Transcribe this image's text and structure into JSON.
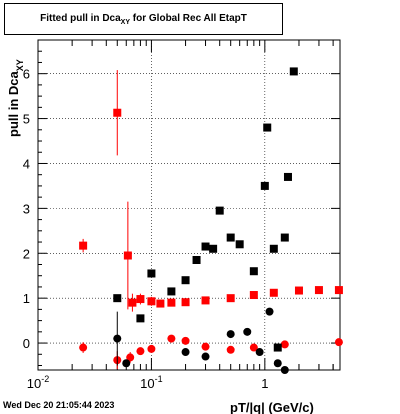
{
  "title": {
    "main": "Fitted pull in Dca",
    "sub": "XY",
    "tail": "for Global Rec All EtapT"
  },
  "ylabel": {
    "main": "pull in Dca",
    "sub": "XY"
  },
  "xlabel": "pT/|q| (GeV/c)",
  "footer": "Wed Dec 20 21:05:44 2023",
  "chart_data": {
    "type": "scatter",
    "title": "Fitted pull in Dca_XY for Global Rec All EtapT",
    "xlabel": "pT/|q| (GeV/c)",
    "ylabel": "pull in Dca_XY",
    "xscale": "log",
    "xlim": [
      0.01,
      4.6
    ],
    "ylim": [
      -0.6,
      6.75
    ],
    "grid": true,
    "x_tick_labels": [
      "10^-2",
      "10^-1",
      "1"
    ],
    "y_tick_labels": [
      "0",
      "1",
      "2",
      "3",
      "4",
      "5",
      "6"
    ],
    "series": [
      {
        "color": "#ff0000",
        "marker": "square",
        "points": [
          {
            "x": 0.025,
            "y": 2.17,
            "yerr": 0.15
          },
          {
            "x": 0.05,
            "y": 5.13,
            "yerr": 0.95
          },
          {
            "x": 0.062,
            "y": 1.95,
            "yerr": 1.2
          },
          {
            "x": 0.068,
            "y": 0.9,
            "yerr": 0.2
          },
          {
            "x": 0.08,
            "y": 0.98,
            "yerr": 0.12
          },
          {
            "x": 0.1,
            "y": 0.93,
            "yerr": 0.1
          },
          {
            "x": 0.12,
            "y": 0.88
          },
          {
            "x": 0.15,
            "y": 0.9
          },
          {
            "x": 0.2,
            "y": 0.91
          },
          {
            "x": 0.3,
            "y": 0.95
          },
          {
            "x": 0.5,
            "y": 1.0
          },
          {
            "x": 0.8,
            "y": 1.07
          },
          {
            "x": 1.2,
            "y": 1.12
          },
          {
            "x": 2.0,
            "y": 1.17
          },
          {
            "x": 3.0,
            "y": 1.18
          },
          {
            "x": 4.5,
            "y": 1.18
          }
        ]
      },
      {
        "color": "#ff0000",
        "marker": "circle",
        "points": [
          {
            "x": 0.025,
            "y": -0.1,
            "yerr": 0.12
          },
          {
            "x": 0.05,
            "y": -0.38,
            "yerr": 0.2
          },
          {
            "x": 0.065,
            "y": -0.32,
            "yerr": 0.12
          },
          {
            "x": 0.08,
            "y": -0.18
          },
          {
            "x": 0.1,
            "y": -0.13
          },
          {
            "x": 0.15,
            "y": 0.1
          },
          {
            "x": 0.2,
            "y": 0.05
          },
          {
            "x": 0.3,
            "y": -0.08
          },
          {
            "x": 0.5,
            "y": -0.15
          },
          {
            "x": 0.8,
            "y": -0.1
          },
          {
            "x": 1.5,
            "y": -0.03
          },
          {
            "x": 4.5,
            "y": 0.02
          }
        ]
      },
      {
        "color": "#000000",
        "marker": "square",
        "points": [
          {
            "x": 0.05,
            "y": 1.0
          },
          {
            "x": 0.08,
            "y": 0.55
          },
          {
            "x": 0.1,
            "y": 1.55
          },
          {
            "x": 0.15,
            "y": 1.15
          },
          {
            "x": 0.2,
            "y": 1.4
          },
          {
            "x": 0.25,
            "y": 1.85
          },
          {
            "x": 0.3,
            "y": 2.15
          },
          {
            "x": 0.35,
            "y": 2.1
          },
          {
            "x": 0.4,
            "y": 2.95
          },
          {
            "x": 0.5,
            "y": 2.35
          },
          {
            "x": 0.6,
            "y": 2.2
          },
          {
            "x": 0.8,
            "y": 1.6
          },
          {
            "x": 1.0,
            "y": 3.5
          },
          {
            "x": 1.05,
            "y": 4.8
          },
          {
            "x": 1.2,
            "y": 2.1
          },
          {
            "x": 1.5,
            "y": 2.35
          },
          {
            "x": 1.6,
            "y": 3.7
          },
          {
            "x": 1.8,
            "y": 6.05
          },
          {
            "x": 1.3,
            "y": -0.1
          }
        ]
      },
      {
        "color": "#000000",
        "marker": "circle",
        "points": [
          {
            "x": 0.05,
            "y": 0.1,
            "yerr": 0.6
          },
          {
            "x": 0.06,
            "y": -0.45
          },
          {
            "x": 0.2,
            "y": -0.2
          },
          {
            "x": 0.3,
            "y": -0.3
          },
          {
            "x": 0.5,
            "y": 0.2
          },
          {
            "x": 0.7,
            "y": 0.25
          },
          {
            "x": 0.9,
            "y": -0.2
          },
          {
            "x": 1.1,
            "y": 0.7
          },
          {
            "x": 1.3,
            "y": -0.45
          },
          {
            "x": 1.5,
            "y": -0.6
          }
        ]
      }
    ]
  }
}
